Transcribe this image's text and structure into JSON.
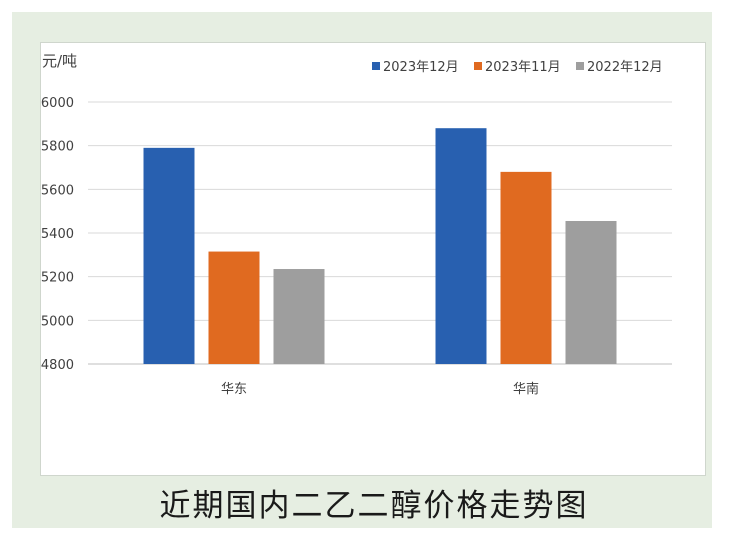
{
  "caption": "近期国内二乙二醇价格走势图",
  "chart_data": {
    "type": "bar",
    "y_unit_label": "元/吨",
    "categories": [
      "华东",
      "华南"
    ],
    "series": [
      {
        "name": "2023年12月",
        "color": "#2860b0",
        "values": [
          5790,
          5880
        ]
      },
      {
        "name": "2023年11月",
        "color": "#e06a20",
        "values": [
          5315,
          5680
        ]
      },
      {
        "name": "2022年12月",
        "color": "#9e9e9e",
        "values": [
          5235,
          5455
        ]
      }
    ],
    "ylim": [
      4800,
      6000
    ],
    "yticks": [
      4800,
      5000,
      5200,
      5400,
      5600,
      5800,
      6000
    ],
    "grid": true,
    "legend_position": "top-right"
  }
}
